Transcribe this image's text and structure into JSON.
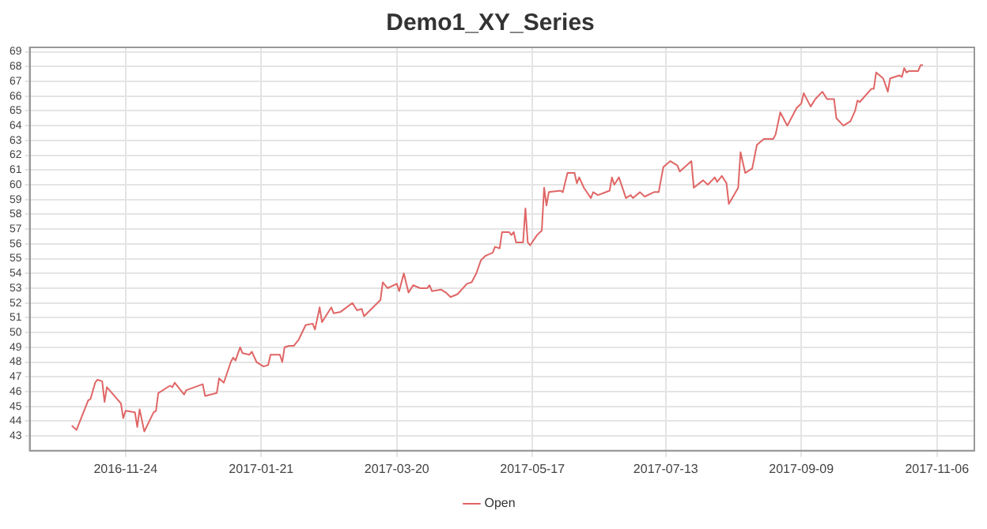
{
  "chart_data": {
    "type": "line",
    "title": "Demo1_XY_Series",
    "legend": "bottom",
    "grid": true,
    "marker": "none",
    "line_style": "solid",
    "xlim": [
      "2016-10-14",
      "2017-11-22"
    ],
    "xticks": [
      "2016-11-24",
      "2017-01-21",
      "2017-03-20",
      "2017-05-17",
      "2017-07-13",
      "2017-09-09",
      "2017-11-06"
    ],
    "ylim": [
      42,
      69.3
    ],
    "yticks": [
      43,
      44,
      45,
      46,
      47,
      48,
      49,
      50,
      51,
      52,
      53,
      54,
      55,
      56,
      57,
      58,
      59,
      60,
      61,
      62,
      63,
      64,
      65,
      66,
      67,
      68,
      69
    ],
    "series": [
      {
        "name": "Open",
        "color": "#e06666",
        "x": [
          "2016-11-01",
          "2016-11-03",
          "2016-11-08",
          "2016-11-09",
          "2016-11-11",
          "2016-11-12",
          "2016-11-14",
          "2016-11-15",
          "2016-11-16",
          "2016-11-22",
          "2016-11-23",
          "2016-11-24",
          "2016-11-28",
          "2016-11-29",
          "2016-11-30",
          "2016-12-02",
          "2016-12-06",
          "2016-12-07",
          "2016-12-08",
          "2016-12-13",
          "2016-12-14",
          "2016-12-15",
          "2016-12-19",
          "2016-12-20",
          "2016-12-27",
          "2016-12-28",
          "2017-01-02",
          "2017-01-03",
          "2017-01-05",
          "2017-01-08",
          "2017-01-09",
          "2017-01-10",
          "2017-01-12",
          "2017-01-13",
          "2017-01-16",
          "2017-01-17",
          "2017-01-19",
          "2017-01-22",
          "2017-01-24",
          "2017-01-25",
          "2017-01-29",
          "2017-01-30",
          "2017-01-31",
          "2017-02-02",
          "2017-02-04",
          "2017-02-06",
          "2017-02-09",
          "2017-02-12",
          "2017-02-13",
          "2017-02-15",
          "2017-02-16",
          "2017-02-20",
          "2017-02-21",
          "2017-02-24",
          "2017-03-01",
          "2017-03-03",
          "2017-03-05",
          "2017-03-06",
          "2017-03-13",
          "2017-03-14",
          "2017-03-16",
          "2017-03-20",
          "2017-03-21",
          "2017-03-23",
          "2017-03-25",
          "2017-03-27",
          "2017-03-30",
          "2017-04-02",
          "2017-04-03",
          "2017-04-04",
          "2017-04-08",
          "2017-04-10",
          "2017-04-12",
          "2017-04-15",
          "2017-04-19",
          "2017-04-21",
          "2017-04-23",
          "2017-04-25",
          "2017-04-27",
          "2017-04-30",
          "2017-05-01",
          "2017-05-03",
          "2017-05-04",
          "2017-05-07",
          "2017-05-08",
          "2017-05-09",
          "2017-05-10",
          "2017-05-13",
          "2017-05-14",
          "2017-05-15",
          "2017-05-16",
          "2017-05-19",
          "2017-05-21",
          "2017-05-22",
          "2017-05-23",
          "2017-05-24",
          "2017-05-29",
          "2017-05-30",
          "2017-06-01",
          "2017-06-04",
          "2017-06-05",
          "2017-06-06",
          "2017-06-08",
          "2017-06-11",
          "2017-06-12",
          "2017-06-14",
          "2017-06-19",
          "2017-06-20",
          "2017-06-21",
          "2017-06-23",
          "2017-06-26",
          "2017-06-28",
          "2017-06-29",
          "2017-07-02",
          "2017-07-04",
          "2017-07-08",
          "2017-07-10",
          "2017-07-12",
          "2017-07-15",
          "2017-07-18",
          "2017-07-19",
          "2017-07-24",
          "2017-07-25",
          "2017-07-29",
          "2017-07-31",
          "2017-08-03",
          "2017-08-04",
          "2017-08-06",
          "2017-08-08",
          "2017-08-09",
          "2017-08-13",
          "2017-08-14",
          "2017-08-16",
          "2017-08-19",
          "2017-08-21",
          "2017-08-24",
          "2017-08-28",
          "2017-08-29",
          "2017-08-31",
          "2017-09-03",
          "2017-09-07",
          "2017-09-09",
          "2017-09-10",
          "2017-09-13",
          "2017-09-15",
          "2017-09-18",
          "2017-09-20",
          "2017-09-23",
          "2017-09-24",
          "2017-09-27",
          "2017-09-30",
          "2017-10-02",
          "2017-10-03",
          "2017-10-04",
          "2017-10-09",
          "2017-10-10",
          "2017-10-11",
          "2017-10-14",
          "2017-10-16",
          "2017-10-17",
          "2017-10-21",
          "2017-10-22",
          "2017-10-23",
          "2017-10-24",
          "2017-10-25",
          "2017-10-29",
          "2017-10-30",
          "2017-10-31"
        ],
        "values": [
          43.7,
          43.4,
          45.4,
          45.5,
          46.6,
          46.8,
          46.7,
          45.3,
          46.3,
          45.2,
          44.2,
          44.7,
          44.6,
          43.6,
          44.8,
          43.3,
          44.6,
          44.7,
          45.9,
          46.4,
          46.3,
          46.6,
          45.8,
          46.1,
          46.5,
          45.7,
          45.9,
          46.9,
          46.6,
          48.0,
          48.3,
          48.1,
          49.0,
          48.6,
          48.5,
          48.7,
          48.0,
          47.7,
          47.8,
          48.5,
          48.5,
          48.0,
          49.0,
          49.1,
          49.1,
          49.5,
          50.5,
          50.6,
          50.2,
          51.7,
          50.7,
          51.7,
          51.3,
          51.4,
          52.0,
          51.5,
          51.6,
          51.1,
          52.2,
          53.4,
          53.0,
          53.3,
          52.8,
          54.0,
          52.7,
          53.2,
          53.0,
          53.0,
          53.2,
          52.8,
          52.9,
          52.7,
          52.4,
          52.6,
          53.3,
          53.4,
          54.0,
          54.9,
          55.2,
          55.4,
          55.8,
          55.7,
          56.8,
          56.8,
          56.6,
          56.8,
          56.1,
          56.1,
          58.4,
          56.1,
          55.9,
          56.6,
          56.9,
          59.8,
          58.6,
          59.5,
          59.6,
          59.5,
          60.8,
          60.8,
          60.1,
          60.5,
          59.8,
          59.1,
          59.5,
          59.3,
          59.6,
          60.5,
          60.0,
          60.5,
          59.1,
          59.3,
          59.1,
          59.5,
          59.2,
          59.5,
          59.5,
          61.2,
          61.6,
          61.3,
          60.9,
          61.6,
          59.8,
          60.3,
          60.0,
          60.5,
          60.2,
          60.6,
          60.1,
          58.7,
          59.8,
          62.2,
          60.8,
          61.1,
          62.7,
          63.1,
          63.1,
          63.4,
          64.9,
          64.0,
          65.2,
          65.5,
          66.2,
          65.3,
          65.8,
          66.3,
          65.8,
          65.8,
          64.5,
          64.0,
          64.3,
          65.0,
          65.7,
          65.6,
          66.5,
          66.5,
          67.6,
          67.2,
          66.3,
          67.2,
          67.4,
          67.3,
          67.9,
          67.6,
          67.7,
          67.7,
          68.1,
          68.1
        ]
      }
    ]
  }
}
